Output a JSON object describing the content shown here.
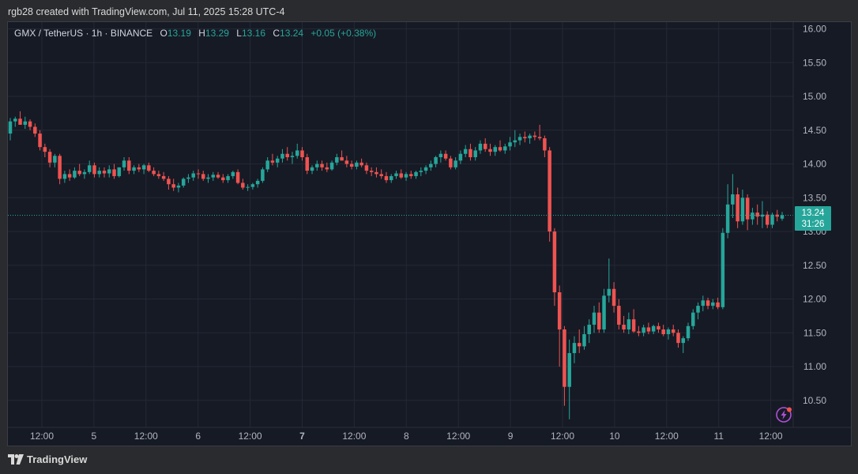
{
  "header": {
    "created_text": "rgb28 created with TradingView.com, Jul 11, 2025 15:28 UTC-4"
  },
  "legend": {
    "symbol": "GMX / TetherUS · 1h · BINANCE",
    "o_label": "O",
    "o_value": "13.19",
    "h_label": "H",
    "h_value": "13.29",
    "l_label": "L",
    "l_value": "13.16",
    "c_label": "C",
    "c_value": "13.24",
    "change": "+0.05 (+0.38%)"
  },
  "price_badge": {
    "price": "13.24",
    "countdown": "31:26"
  },
  "footer": {
    "brand": "TradingView"
  },
  "colors": {
    "up": "#26a69a",
    "down": "#ef5350",
    "background": "#161a25",
    "grid": "#242835",
    "axis_text": "#b2b5be"
  },
  "icons": [
    "tradingview-logo-icon",
    "flash-icon"
  ],
  "chart_data": {
    "type": "candlestick",
    "title": "GMX / TetherUS · 1h · BINANCE",
    "y_ticks": [
      "16.00",
      "15.50",
      "15.00",
      "14.50",
      "14.00",
      "13.50",
      "13.00",
      "12.50",
      "12.00",
      "11.50",
      "11.00",
      "10.50"
    ],
    "ylim": [
      10.1,
      16.1
    ],
    "x_ticks": [
      "12:00",
      "5",
      "12:00",
      "6",
      "12:00",
      "7",
      "12:00",
      "8",
      "12:00",
      "9",
      "12:00",
      "10",
      "12:00",
      "11",
      "12:00"
    ],
    "x_tick_bold": [
      false,
      false,
      false,
      false,
      false,
      true,
      false,
      false,
      false,
      false,
      false,
      false,
      false,
      false,
      false
    ],
    "last_price": 13.24,
    "candles": [
      [
        14.45,
        14.68,
        14.35,
        14.63
      ],
      [
        14.63,
        14.7,
        14.55,
        14.67
      ],
      [
        14.67,
        14.78,
        14.6,
        14.58
      ],
      [
        14.58,
        14.7,
        14.52,
        14.63
      ],
      [
        14.63,
        14.66,
        14.5,
        14.55
      ],
      [
        14.55,
        14.6,
        14.4,
        14.45
      ],
      [
        14.45,
        14.5,
        14.2,
        14.25
      ],
      [
        14.25,
        14.3,
        14.1,
        14.18
      ],
      [
        14.18,
        14.22,
        13.95,
        14.02
      ],
      [
        14.02,
        14.15,
        13.95,
        14.12
      ],
      [
        14.12,
        14.15,
        13.7,
        13.78
      ],
      [
        13.78,
        13.9,
        13.72,
        13.85
      ],
      [
        13.85,
        13.92,
        13.75,
        13.8
      ],
      [
        13.8,
        13.95,
        13.78,
        13.9
      ],
      [
        13.9,
        14.0,
        13.82,
        13.85
      ],
      [
        13.85,
        13.92,
        13.78,
        13.88
      ],
      [
        13.88,
        14.05,
        13.85,
        13.98
      ],
      [
        13.98,
        14.02,
        13.8,
        13.85
      ],
      [
        13.85,
        13.95,
        13.8,
        13.9
      ],
      [
        13.9,
        13.95,
        13.8,
        13.86
      ],
      [
        13.86,
        13.98,
        13.8,
        13.92
      ],
      [
        13.92,
        14.0,
        13.78,
        13.82
      ],
      [
        13.82,
        13.95,
        13.8,
        13.95
      ],
      [
        13.95,
        14.1,
        13.9,
        14.05
      ],
      [
        14.05,
        14.1,
        13.85,
        13.9
      ],
      [
        13.9,
        13.98,
        13.85,
        13.95
      ],
      [
        13.95,
        14.0,
        13.88,
        13.92
      ],
      [
        13.92,
        14.0,
        13.85,
        13.98
      ],
      [
        13.98,
        14.02,
        13.88,
        13.9
      ],
      [
        13.9,
        13.95,
        13.82,
        13.85
      ],
      [
        13.85,
        13.9,
        13.78,
        13.82
      ],
      [
        13.82,
        13.88,
        13.75,
        13.78
      ],
      [
        13.78,
        13.82,
        13.62,
        13.7
      ],
      [
        13.7,
        13.78,
        13.6,
        13.65
      ],
      [
        13.65,
        13.72,
        13.58,
        13.68
      ],
      [
        13.68,
        13.8,
        13.65,
        13.78
      ],
      [
        13.78,
        13.85,
        13.72,
        13.8
      ],
      [
        13.8,
        13.9,
        13.75,
        13.86
      ],
      [
        13.86,
        13.92,
        13.78,
        13.85
      ],
      [
        13.85,
        13.9,
        13.75,
        13.78
      ],
      [
        13.78,
        13.85,
        13.72,
        13.8
      ],
      [
        13.8,
        13.88,
        13.75,
        13.84
      ],
      [
        13.84,
        13.88,
        13.78,
        13.8
      ],
      [
        13.8,
        13.85,
        13.72,
        13.76
      ],
      [
        13.76,
        13.85,
        13.72,
        13.82
      ],
      [
        13.82,
        13.9,
        13.78,
        13.88
      ],
      [
        13.88,
        13.92,
        13.7,
        13.72
      ],
      [
        13.72,
        13.78,
        13.62,
        13.65
      ],
      [
        13.65,
        13.7,
        13.6,
        13.66
      ],
      [
        13.66,
        13.72,
        13.62,
        13.7
      ],
      [
        13.7,
        13.78,
        13.65,
        13.75
      ],
      [
        13.75,
        13.95,
        13.72,
        13.92
      ],
      [
        13.92,
        14.1,
        13.88,
        14.05
      ],
      [
        14.05,
        14.15,
        13.98,
        14.02
      ],
      [
        14.02,
        14.12,
        13.95,
        14.08
      ],
      [
        14.08,
        14.22,
        14.02,
        14.15
      ],
      [
        14.15,
        14.25,
        14.05,
        14.1
      ],
      [
        14.1,
        14.18,
        14.0,
        14.12
      ],
      [
        14.12,
        14.3,
        14.08,
        14.2
      ],
      [
        14.2,
        14.25,
        14.05,
        14.1
      ],
      [
        14.1,
        14.15,
        13.85,
        13.9
      ],
      [
        13.9,
        13.98,
        13.85,
        13.95
      ],
      [
        13.95,
        14.05,
        13.9,
        14.0
      ],
      [
        14.0,
        14.05,
        13.9,
        13.95
      ],
      [
        13.95,
        14.02,
        13.88,
        13.92
      ],
      [
        13.92,
        14.05,
        13.9,
        14.02
      ],
      [
        14.02,
        14.15,
        13.98,
        14.1
      ],
      [
        14.1,
        14.2,
        14.05,
        14.05
      ],
      [
        14.05,
        14.12,
        13.95,
        14.0
      ],
      [
        14.0,
        14.05,
        13.92,
        13.96
      ],
      [
        13.96,
        14.05,
        13.92,
        14.02
      ],
      [
        14.02,
        14.08,
        13.95,
        13.98
      ],
      [
        13.98,
        14.02,
        13.85,
        13.9
      ],
      [
        13.9,
        13.95,
        13.82,
        13.88
      ],
      [
        13.88,
        13.95,
        13.8,
        13.85
      ],
      [
        13.85,
        13.92,
        13.78,
        13.82
      ],
      [
        13.82,
        13.88,
        13.72,
        13.76
      ],
      [
        13.76,
        13.85,
        13.72,
        13.82
      ],
      [
        13.82,
        13.9,
        13.78,
        13.86
      ],
      [
        13.86,
        13.92,
        13.78,
        13.8
      ],
      [
        13.8,
        13.88,
        13.75,
        13.85
      ],
      [
        13.85,
        13.9,
        13.78,
        13.82
      ],
      [
        13.82,
        13.9,
        13.78,
        13.88
      ],
      [
        13.88,
        13.95,
        13.82,
        13.9
      ],
      [
        13.9,
        13.98,
        13.85,
        13.95
      ],
      [
        13.95,
        14.05,
        13.9,
        14.0
      ],
      [
        14.0,
        14.12,
        13.95,
        14.1
      ],
      [
        14.1,
        14.2,
        14.02,
        14.15
      ],
      [
        14.15,
        14.2,
        14.05,
        14.08
      ],
      [
        14.08,
        14.12,
        13.92,
        13.95
      ],
      [
        13.95,
        14.1,
        13.92,
        14.05
      ],
      [
        14.05,
        14.2,
        14.0,
        14.15
      ],
      [
        14.15,
        14.28,
        14.1,
        14.22
      ],
      [
        14.22,
        14.3,
        14.05,
        14.1
      ],
      [
        14.1,
        14.25,
        14.05,
        14.2
      ],
      [
        14.2,
        14.35,
        14.15,
        14.3
      ],
      [
        14.3,
        14.38,
        14.18,
        14.22
      ],
      [
        14.22,
        14.3,
        14.12,
        14.18
      ],
      [
        14.18,
        14.28,
        14.12,
        14.25
      ],
      [
        14.25,
        14.35,
        14.18,
        14.2
      ],
      [
        14.2,
        14.3,
        14.15,
        14.26
      ],
      [
        14.26,
        14.4,
        14.2,
        14.32
      ],
      [
        14.32,
        14.5,
        14.25,
        14.35
      ],
      [
        14.35,
        14.45,
        14.28,
        14.4
      ],
      [
        14.4,
        14.48,
        14.32,
        14.38
      ],
      [
        14.38,
        14.45,
        14.3,
        14.42
      ],
      [
        14.42,
        14.48,
        14.35,
        14.4
      ],
      [
        14.4,
        14.58,
        14.35,
        14.38
      ],
      [
        14.38,
        14.42,
        14.1,
        14.2
      ],
      [
        14.2,
        14.25,
        12.85,
        13.0
      ],
      [
        13.0,
        13.05,
        11.9,
        12.1
      ],
      [
        12.1,
        12.2,
        11.0,
        11.55
      ],
      [
        11.55,
        11.6,
        10.42,
        10.7
      ],
      [
        10.7,
        11.4,
        10.22,
        11.2
      ],
      [
        11.2,
        11.45,
        11.05,
        11.35
      ],
      [
        11.35,
        11.55,
        11.2,
        11.3
      ],
      [
        11.3,
        11.6,
        11.25,
        11.48
      ],
      [
        11.48,
        11.7,
        11.35,
        11.62
      ],
      [
        11.62,
        11.9,
        11.5,
        11.8
      ],
      [
        11.8,
        11.95,
        11.5,
        11.55
      ],
      [
        11.55,
        12.15,
        11.5,
        12.05
      ],
      [
        12.05,
        12.6,
        11.95,
        12.15
      ],
      [
        12.15,
        12.25,
        11.8,
        11.9
      ],
      [
        11.9,
        12.0,
        11.55,
        11.62
      ],
      [
        11.62,
        11.75,
        11.5,
        11.55
      ],
      [
        11.55,
        11.8,
        11.48,
        11.7
      ],
      [
        11.7,
        11.85,
        11.5,
        11.52
      ],
      [
        11.52,
        11.6,
        11.45,
        11.5
      ],
      [
        11.5,
        11.62,
        11.45,
        11.58
      ],
      [
        11.58,
        11.65,
        11.48,
        11.52
      ],
      [
        11.52,
        11.62,
        11.48,
        11.6
      ],
      [
        11.6,
        11.65,
        11.5,
        11.55
      ],
      [
        11.55,
        11.62,
        11.45,
        11.48
      ],
      [
        11.48,
        11.58,
        11.4,
        11.55
      ],
      [
        11.55,
        11.62,
        11.45,
        11.5
      ],
      [
        11.5,
        11.55,
        11.28,
        11.35
      ],
      [
        11.35,
        11.45,
        11.2,
        11.42
      ],
      [
        11.42,
        11.65,
        11.38,
        11.6
      ],
      [
        11.6,
        11.85,
        11.55,
        11.8
      ],
      [
        11.8,
        11.95,
        11.7,
        11.9
      ],
      [
        11.9,
        12.05,
        11.82,
        11.98
      ],
      [
        11.98,
        12.02,
        11.85,
        11.9
      ],
      [
        11.9,
        12.0,
        11.85,
        11.95
      ],
      [
        11.95,
        12.02,
        11.85,
        11.88
      ],
      [
        11.88,
        13.05,
        11.85,
        12.98
      ],
      [
        12.98,
        13.7,
        12.9,
        13.4
      ],
      [
        13.4,
        13.85,
        13.2,
        13.55
      ],
      [
        13.55,
        13.65,
        13.05,
        13.15
      ],
      [
        13.15,
        13.62,
        13.1,
        13.5
      ],
      [
        13.5,
        13.55,
        13.02,
        13.18
      ],
      [
        13.18,
        13.35,
        13.1,
        13.28
      ],
      [
        13.28,
        13.4,
        13.1,
        13.22
      ],
      [
        13.22,
        13.45,
        13.05,
        13.25
      ],
      [
        13.25,
        13.3,
        13.05,
        13.1
      ],
      [
        13.1,
        13.28,
        13.05,
        13.25
      ],
      [
        13.25,
        13.32,
        13.15,
        13.22
      ],
      [
        13.19,
        13.29,
        13.16,
        13.24
      ]
    ]
  }
}
